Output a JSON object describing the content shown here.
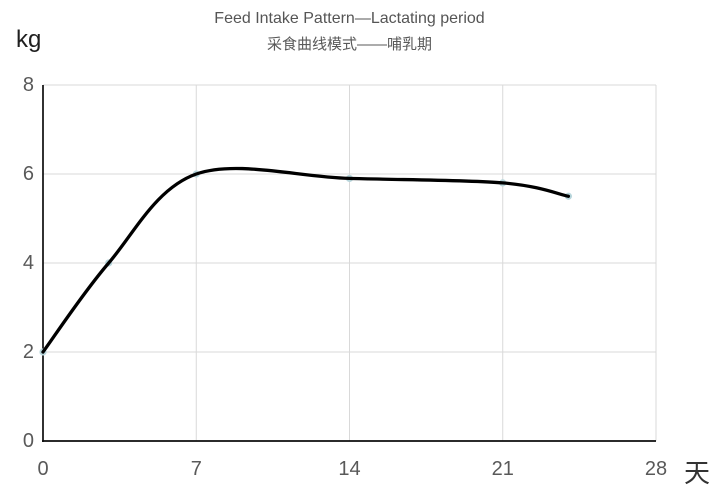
{
  "chart_data": {
    "type": "line",
    "title": "Feed Intake Pattern—Lactating period",
    "subtitle": "采食曲线模式——哺乳期",
    "y_unit_label": "kg",
    "x_unit_label": "天",
    "x": [
      0,
      3,
      7,
      14,
      21,
      24
    ],
    "values": [
      2,
      4,
      6,
      5.9,
      5.8,
      5.5
    ],
    "series_name": "feed-intake-kg",
    "x_ticks": [
      0,
      7,
      14,
      21,
      28
    ],
    "y_ticks": [
      0,
      2,
      4,
      6,
      8
    ],
    "xlim": [
      0,
      28
    ],
    "ylim": [
      0,
      8
    ],
    "grid": true,
    "smooth": true,
    "legend": "none",
    "line_color": "#000000",
    "marker_color": "#b8d6dc",
    "gridline_color": "#d9d9d9",
    "axis_color": "#0d0d0d",
    "tick_text_color": "#595959",
    "background_color": "#ffffff"
  }
}
